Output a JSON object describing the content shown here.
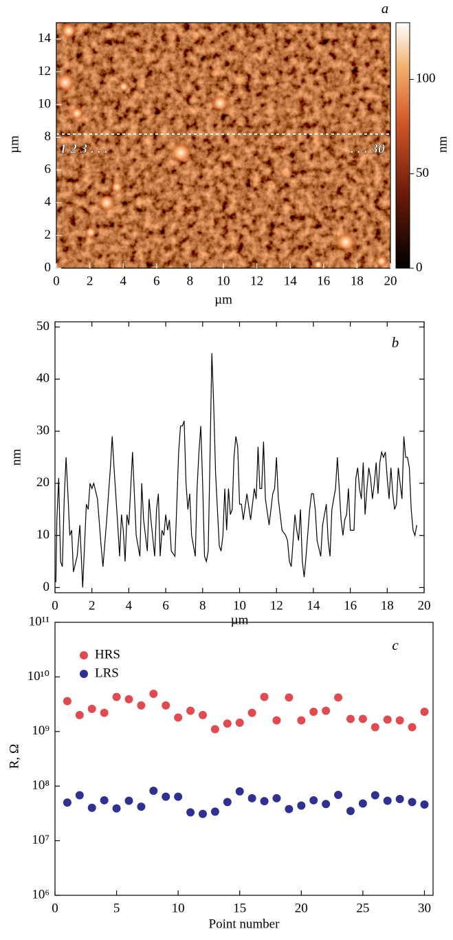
{
  "chart_data": [
    {
      "type": "image",
      "label": "a",
      "xlabel": "µm",
      "ylabel": "µm",
      "xlim": [
        0,
        20
      ],
      "ylim": [
        0,
        15
      ],
      "xticks": [
        0,
        2,
        4,
        6,
        8,
        10,
        12,
        14,
        16,
        18,
        20
      ],
      "yticks": [
        0,
        2,
        4,
        6,
        8,
        10,
        12,
        14
      ],
      "colorbar": {
        "label": "nm",
        "lim": [
          0,
          130
        ],
        "ticks": [
          0,
          50,
          100
        ]
      },
      "annotations": [
        "1 2 3 . . .",
        ". . . 30"
      ]
    },
    {
      "type": "line",
      "label": "b",
      "xlabel": "µm",
      "ylabel": "nm",
      "xlim": [
        0,
        20
      ],
      "ylim": [
        -1,
        51
      ],
      "xticks": [
        0,
        2,
        4,
        6,
        8,
        10,
        12,
        14,
        16,
        18,
        20
      ],
      "yticks": [
        0,
        10,
        20,
        30,
        40,
        50
      ],
      "x": [
        0.05,
        0.1,
        0.2,
        0.3,
        0.4,
        0.5,
        0.6,
        0.7,
        0.8,
        0.9,
        1.0,
        1.2,
        1.35,
        1.5,
        1.7,
        1.8,
        1.9,
        2.0,
        2.1,
        2.3,
        2.5,
        2.6,
        2.8,
        3.0,
        3.1,
        3.2,
        3.4,
        3.5,
        3.6,
        3.7,
        3.8,
        3.9,
        4.0,
        4.2,
        4.3,
        4.4,
        4.6,
        4.7,
        4.8,
        5.0,
        5.1,
        5.2,
        5.4,
        5.5,
        5.6,
        5.7,
        5.8,
        5.9,
        6.0,
        6.1,
        6.2,
        6.3,
        6.5,
        6.7,
        6.8,
        6.9,
        7.0,
        7.1,
        7.2,
        7.3,
        7.4,
        7.6,
        7.7,
        7.8,
        7.9,
        8.0,
        8.1,
        8.2,
        8.3,
        8.4,
        8.5,
        8.6,
        8.7,
        8.8,
        8.9,
        9.0,
        9.1,
        9.2,
        9.3,
        9.4,
        9.5,
        9.6,
        9.7,
        9.8,
        9.9,
        10.0,
        10.1,
        10.2,
        10.4,
        10.6,
        10.8,
        10.9,
        11.0,
        11.1,
        11.2,
        11.3,
        11.4,
        11.6,
        11.8,
        11.9,
        12.0,
        12.1,
        12.3,
        12.5,
        12.6,
        12.7,
        12.8,
        13.0,
        13.1,
        13.2,
        13.3,
        13.4,
        13.5,
        13.6,
        13.8,
        13.9,
        14.0,
        14.1,
        14.2,
        14.4,
        14.5,
        14.6,
        14.7,
        14.8,
        14.9,
        15.0,
        15.2,
        15.3,
        15.4,
        15.5,
        15.6,
        15.7,
        15.8,
        15.9,
        16.0,
        16.2,
        16.3,
        16.4,
        16.5,
        16.6,
        16.7,
        16.8,
        16.9,
        17.0,
        17.1,
        17.2,
        17.3,
        17.4,
        17.5,
        17.6,
        17.7,
        17.8,
        17.9,
        18.0,
        18.1,
        18.2,
        18.3,
        18.4,
        18.5,
        18.6,
        18.7,
        18.8,
        18.9,
        19.0,
        19.1,
        19.2,
        19.3,
        19.4,
        19.5,
        19.6
      ],
      "series": [
        {
          "color": "#000000",
          "values": [
            1,
            13,
            21,
            5,
            4,
            17,
            25,
            18,
            10,
            11,
            3,
            6,
            12,
            0,
            16,
            15,
            20,
            19,
            20,
            17,
            8,
            4,
            13,
            23,
            29,
            23,
            12,
            6,
            14,
            11,
            5,
            14,
            12,
            26,
            18,
            10,
            6,
            20,
            13,
            7,
            17,
            13,
            6,
            15,
            18,
            6,
            11,
            10,
            14,
            11,
            13,
            7,
            6,
            26,
            31,
            31,
            32,
            20,
            15,
            18,
            10,
            6,
            19,
            26,
            31,
            20,
            6,
            5,
            7,
            25,
            45,
            35,
            22,
            15,
            8,
            7,
            10,
            19,
            11,
            19,
            14,
            15,
            25,
            29,
            27,
            16,
            16,
            13,
            18,
            13,
            19,
            17,
            27,
            19,
            19,
            28,
            17,
            12,
            18,
            19,
            25,
            17,
            11,
            10,
            9,
            5,
            4,
            14,
            11,
            9,
            15,
            5,
            2,
            6,
            15,
            18,
            18,
            15,
            9,
            6,
            12,
            14,
            16,
            9,
            6,
            15,
            19,
            25,
            19,
            13,
            10,
            13,
            14,
            19,
            11,
            11,
            21,
            23,
            19,
            17,
            24,
            14,
            19,
            23,
            21,
            17,
            20,
            24,
            18,
            24,
            26,
            25,
            26,
            21,
            17,
            23,
            18,
            15,
            16,
            23,
            20,
            17,
            29,
            25,
            25,
            23,
            15,
            11,
            10,
            12
          ]
        }
      ]
    },
    {
      "type": "scatter",
      "label": "c",
      "xlabel": "Point number",
      "ylabel": "R, Ω",
      "log_y": true,
      "legend": "upper left",
      "xlim": [
        0,
        30.7
      ],
      "ylim": [
        1000000,
        100000000000
      ],
      "xticks": [
        0,
        5,
        10,
        15,
        20,
        25,
        30
      ],
      "yticks": [
        {
          "value": 1000000,
          "label": "10⁶"
        },
        {
          "value": 10000000,
          "label": "10⁷"
        },
        {
          "value": 100000000,
          "label": "10⁸"
        },
        {
          "value": 1000000000,
          "label": "10⁹"
        },
        {
          "value": 10000000000,
          "label": "10¹⁰"
        },
        {
          "value": 100000000000,
          "label": "10¹¹"
        }
      ],
      "x": [
        1,
        2,
        3,
        4,
        5,
        6,
        7,
        8,
        9,
        10,
        11,
        12,
        13,
        14,
        15,
        16,
        17,
        18,
        19,
        20,
        21,
        22,
        23,
        24,
        25,
        26,
        27,
        28,
        29,
        30
      ],
      "series": [
        {
          "name": "HRS",
          "color": "#e04b52",
          "values": [
            3600000000,
            2000000000,
            2600000000,
            2200000000,
            4300000000,
            3900000000,
            3000000000,
            4900000000,
            3000000000,
            1800000000,
            2400000000,
            2000000000,
            1100000000,
            1400000000,
            1450000000,
            2200000000,
            4300000000,
            1600000000,
            4200000000,
            1600000000,
            2300000000,
            2400000000,
            4200000000,
            1700000000,
            1700000000,
            1200000000,
            1650000000,
            1600000000,
            1200000000,
            2300000000
          ]
        },
        {
          "name": "LRS",
          "color": "#2e3192",
          "values": [
            50000000,
            68000000,
            40000000,
            55000000,
            39000000,
            54000000,
            42000000,
            82000000,
            64000000,
            64000000,
            33000000,
            31000000,
            34000000,
            51000000,
            80000000,
            60000000,
            53000000,
            60000000,
            38000000,
            44000000,
            55000000,
            47000000,
            69000000,
            35000000,
            48000000,
            68000000,
            54000000,
            58000000,
            51000000,
            46000000
          ]
        }
      ]
    }
  ]
}
